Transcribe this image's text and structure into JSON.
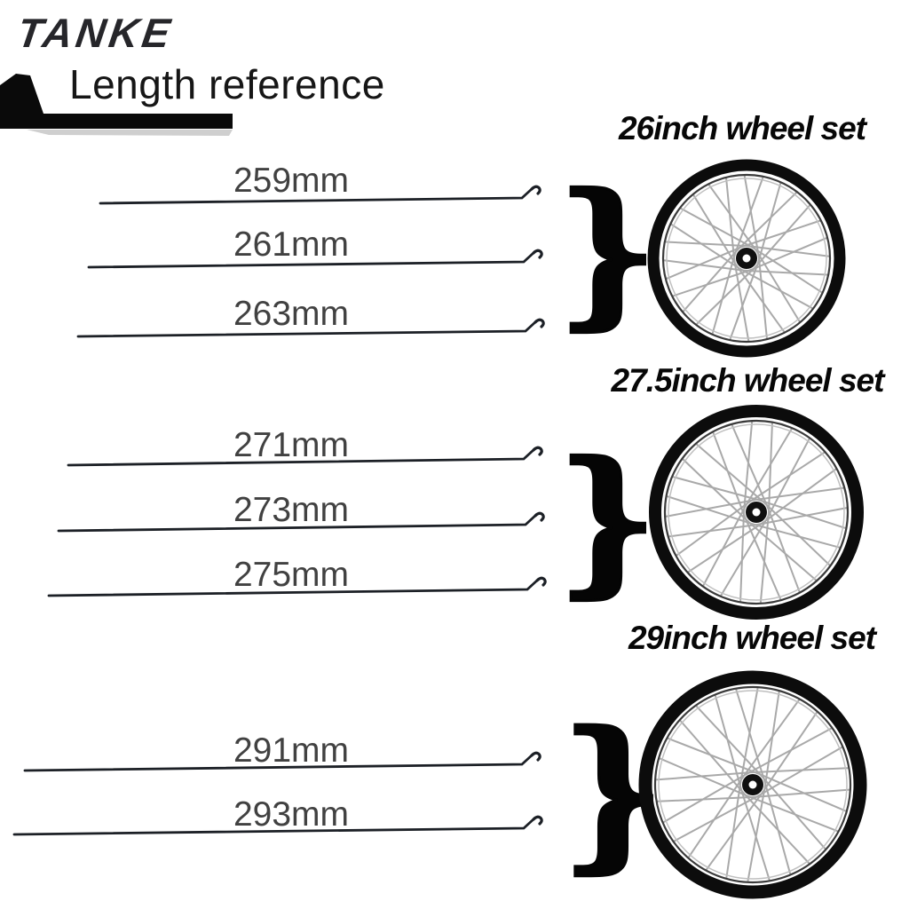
{
  "brand": {
    "logo_text": "TANKE"
  },
  "header": {
    "title": "Length reference"
  },
  "groups": [
    {
      "wheel_title": "26inch wheel set",
      "lengths": [
        "259mm",
        "261mm",
        "263mm"
      ]
    },
    {
      "wheel_title": "27.5inch wheel set",
      "lengths": [
        "271mm",
        "273mm",
        "275mm"
      ]
    },
    {
      "wheel_title": "29inch wheel set",
      "lengths": [
        "291mm",
        "293mm"
      ]
    }
  ],
  "icons": {
    "brace_glyph": "}"
  },
  "colors": {
    "ribbon_black": "#0a0a0a",
    "label_text": "#414141",
    "title_text": "#070707",
    "spoke_line": "#1c2026",
    "wheel_spoke_gray": "#a9a9a9",
    "tire_black": "#0c0c0c"
  }
}
